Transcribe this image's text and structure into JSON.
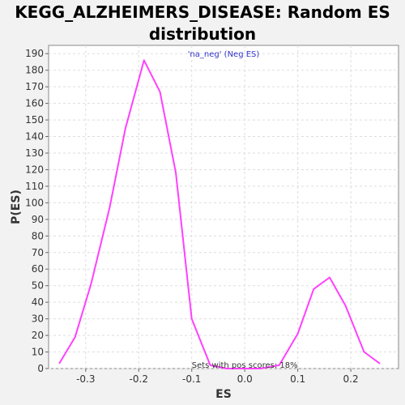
{
  "chart_data": {
    "type": "line",
    "title_line1": "KEGG_ALZHEIMERS_DISEASE: Random ES",
    "title_line2": "distribution",
    "xlabel": "ES",
    "ylabel": "P(ES)",
    "xlim": [
      -0.37,
      0.29
    ],
    "ylim": [
      0,
      195
    ],
    "xticks": [
      -0.3,
      -0.2,
      -0.1,
      0.0,
      0.1,
      0.2
    ],
    "xtick_labels": [
      "-0.3",
      "-0.2",
      "-0.1",
      "0.0",
      "0.1",
      "0.2"
    ],
    "yticks": [
      0,
      10,
      20,
      30,
      40,
      50,
      60,
      70,
      80,
      90,
      100,
      110,
      120,
      130,
      140,
      150,
      160,
      170,
      180,
      190
    ],
    "grid": true,
    "series": [
      {
        "color": "#ff40ff",
        "x": [
          -0.35,
          -0.32,
          -0.29,
          -0.255,
          -0.225,
          -0.19,
          -0.16,
          -0.13,
          -0.1,
          -0.065,
          -0.035,
          0.0,
          0.03,
          0.065,
          0.1,
          0.13,
          0.16,
          0.19,
          0.225,
          0.255
        ],
        "y": [
          3,
          19,
          51,
          97,
          145,
          186,
          167,
          118,
          30,
          2,
          0,
          0,
          0,
          2,
          21,
          48,
          55,
          38,
          10,
          3
        ]
      }
    ],
    "annotations": {
      "legend_text": "'na_neg' (Neg ES)",
      "legend_color": "#3333cc",
      "bottom_text": "Sets with pos scores: 18%"
    }
  }
}
